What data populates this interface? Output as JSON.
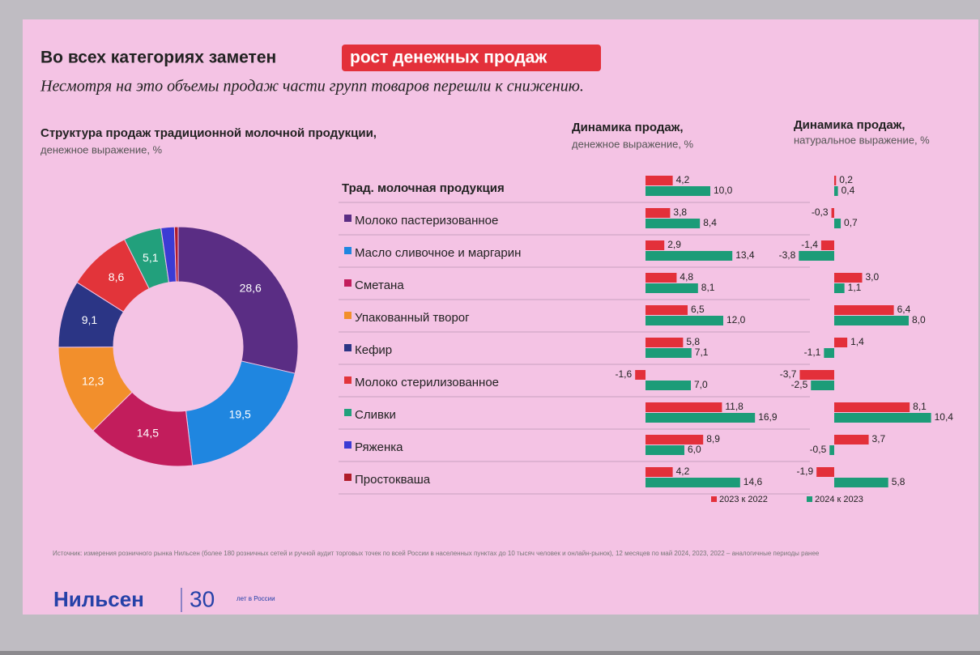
{
  "slide": {
    "title": "Во всех категориях заметен",
    "title_highlight": "рост денежных продаж",
    "subtitle": "Несмотря на это объемы продаж части групп товаров перешли к снижению.",
    "source": "Источник: измерения розничного рынка Нильсен (более 180 розничных сетей и ручной аудит торговых точек по всей России в населенных пунктах до 10 тысяч человек и онлайн-рынок), 12 месяцев по май 2024, 2023, 2022 – аналогичные периоды ранее",
    "logo": "Нильсен",
    "anniversary_number": "30",
    "anniversary_text": "лет в России"
  },
  "chart_data": [
    {
      "type": "pie",
      "title": "Структура продаж традиционной молочной продукции,",
      "subtitle": "денежное выражение, %",
      "values": [
        28.6,
        19.5,
        14.5,
        12.3,
        9.1,
        8.6,
        5.1,
        1.8,
        0.5
      ],
      "value_labels": [
        "28,6",
        "19,5",
        "14,5",
        "12,3",
        "9,1",
        "8,6",
        "5,1",
        null,
        null
      ],
      "colors": [
        "#5a2d84",
        "#1f86e0",
        "#c21d5c",
        "#f28f2c",
        "#2b3585",
        "#e2343a",
        "#22a07c",
        "#3b3bd4",
        "#b01c2a"
      ]
    },
    {
      "type": "bar",
      "orientation": "horizontal",
      "title": "Динамика продаж,",
      "subtitle": "денежное выражение, %",
      "categories": [
        "Трад. молочная продукция",
        "Молоко пастеризованное",
        "Масло сливочное и маргарин",
        "Сметана",
        "Упакованный творог",
        "Кефир",
        "Молоко стерилизованное",
        "Сливки",
        "Ряженка",
        "Простокваша"
      ],
      "series": [
        {
          "name": "2023 к 2022",
          "color": "#e3303a",
          "values": [
            4.2,
            3.8,
            2.9,
            4.8,
            6.5,
            5.8,
            -1.6,
            11.8,
            8.9,
            4.2
          ],
          "value_labels": [
            "4,2",
            "3,8",
            "2,9",
            "4,8",
            "6,5",
            "5,8",
            "-1,6",
            "11,8",
            "8,9",
            "4,2"
          ]
        },
        {
          "name": "2024 к 2023",
          "color": "#1c9c78",
          "values": [
            10.0,
            8.4,
            13.4,
            8.1,
            12.0,
            7.1,
            7.0,
            16.9,
            6.0,
            14.6
          ],
          "value_labels": [
            "10,0",
            "8,4",
            "13,4",
            "8,1",
            "12,0",
            "7,1",
            "7,0",
            "16,9",
            "6,0",
            "14,6"
          ]
        }
      ]
    },
    {
      "type": "bar",
      "orientation": "horizontal",
      "title": "Динамика продаж,",
      "subtitle": "натуральное выражение, %",
      "series": [
        {
          "name": "2023 к 2022",
          "color": "#e3303a",
          "values": [
            0.2,
            -0.3,
            -1.4,
            3.0,
            6.4,
            1.4,
            -3.7,
            8.1,
            3.7,
            -1.9
          ],
          "value_labels": [
            "0,2",
            "-0,3",
            "-1,4",
            "3,0",
            "6,4",
            "1,4",
            "-3,7",
            "8,1",
            "3,7",
            "-1,9"
          ]
        },
        {
          "name": "2024 к 2023",
          "color": "#1c9c78",
          "values": [
            0.4,
            0.7,
            -3.8,
            1.1,
            8.0,
            -1.1,
            -2.5,
            10.4,
            -0.5,
            5.8
          ],
          "value_labels": [
            "0,4",
            "0,7",
            "-3,8",
            "1,1",
            "8,0",
            "-1,1",
            "-2,5",
            "10,4",
            "-0,5",
            "5,8"
          ]
        }
      ]
    }
  ]
}
